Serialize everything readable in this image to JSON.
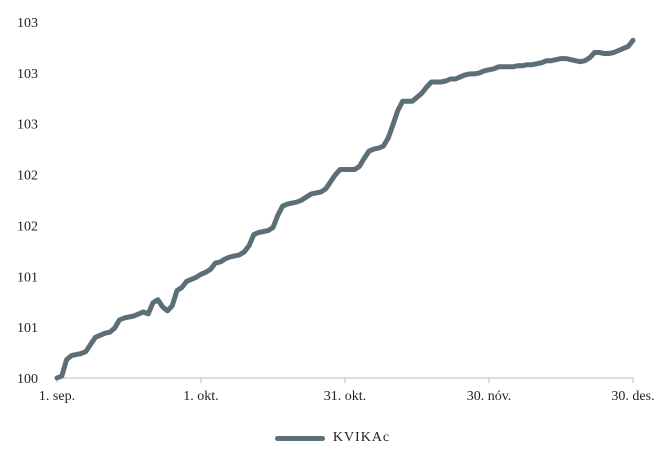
{
  "chart_data": {
    "type": "line",
    "title": "",
    "xlabel": "",
    "ylabel": "",
    "ylim": [
      100,
      103.5
    ],
    "yticks": [
      100,
      100.5,
      101,
      101.5,
      102,
      102.5,
      103,
      103.5
    ],
    "ytick_labels": [
      "100",
      "101",
      "101",
      "102",
      "102",
      "103",
      "103",
      "103"
    ],
    "x_range": [
      0,
      120
    ],
    "xticks": [
      0,
      30,
      60,
      90,
      120
    ],
    "xtick_labels": [
      "1. sep.",
      "1. okt.",
      "31. okt.",
      "30. nóv.",
      "30. des."
    ],
    "legend_position": "bottom",
    "series": [
      {
        "name": "KVIKAc",
        "color": "#5c6f78",
        "x": [
          0,
          1,
          2,
          3,
          4,
          5,
          6,
          7,
          8,
          9,
          10,
          11,
          12,
          13,
          14,
          15,
          16,
          17,
          18,
          19,
          20,
          21,
          22,
          23,
          24,
          25,
          26,
          27,
          28,
          29,
          30,
          31,
          32,
          33,
          34,
          35,
          36,
          37,
          38,
          39,
          40,
          41,
          42,
          43,
          44,
          45,
          46,
          47,
          48,
          49,
          50,
          51,
          52,
          53,
          54,
          55,
          56,
          57,
          58,
          59,
          60,
          61,
          62,
          63,
          64,
          65,
          66,
          67,
          68,
          69,
          70,
          71,
          72,
          73,
          74,
          75,
          76,
          77,
          78,
          79,
          80,
          81,
          82,
          83,
          84,
          85,
          86,
          87,
          88,
          89,
          90,
          91,
          92,
          93,
          94,
          95,
          96,
          97,
          98,
          99,
          100,
          101,
          102,
          103,
          104,
          105,
          106,
          107,
          108,
          109,
          110,
          111,
          112,
          113,
          114,
          115,
          116,
          117,
          118,
          119,
          120
        ],
        "y": [
          100.0,
          100.02,
          100.18,
          100.22,
          100.23,
          100.24,
          100.26,
          100.33,
          100.4,
          100.42,
          100.44,
          100.45,
          100.49,
          100.57,
          100.59,
          100.6,
          100.61,
          100.63,
          100.65,
          100.63,
          100.74,
          100.77,
          100.7,
          100.66,
          100.71,
          100.86,
          100.89,
          100.95,
          100.97,
          100.99,
          101.02,
          101.04,
          101.07,
          101.13,
          101.14,
          101.17,
          101.19,
          101.2,
          101.21,
          101.24,
          101.3,
          101.41,
          101.43,
          101.44,
          101.45,
          101.48,
          101.6,
          101.69,
          101.71,
          101.72,
          101.73,
          101.75,
          101.78,
          101.81,
          101.82,
          101.83,
          101.86,
          101.93,
          102.0,
          102.05,
          102.05,
          102.05,
          102.05,
          102.08,
          102.16,
          102.23,
          102.25,
          102.26,
          102.28,
          102.36,
          102.49,
          102.63,
          102.72,
          102.72,
          102.72,
          102.76,
          102.8,
          102.86,
          102.91,
          102.91,
          102.91,
          102.92,
          102.94,
          102.94,
          102.96,
          102.98,
          102.99,
          102.99,
          103.0,
          103.02,
          103.03,
          103.04,
          103.06,
          103.06,
          103.06,
          103.06,
          103.07,
          103.07,
          103.08,
          103.08,
          103.09,
          103.1,
          103.12,
          103.12,
          103.13,
          103.14,
          103.14,
          103.13,
          103.12,
          103.11,
          103.12,
          103.15,
          103.2,
          103.2,
          103.19,
          103.19,
          103.2,
          103.22,
          103.24,
          103.26,
          103.32
        ]
      }
    ]
  },
  "legend": {
    "label": "KVIKAc"
  }
}
